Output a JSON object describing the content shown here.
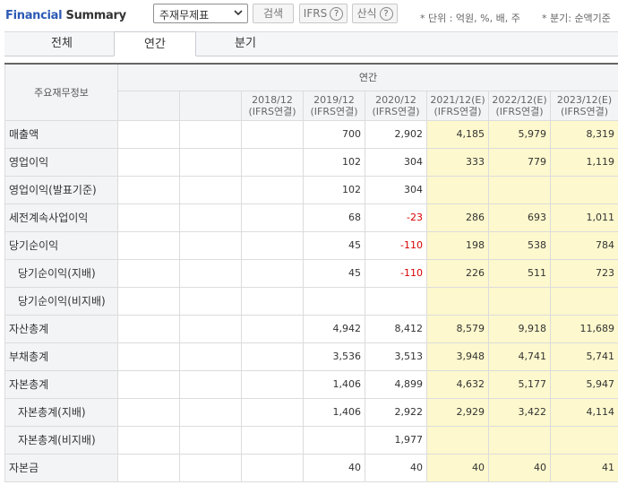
{
  "header": {
    "title_accent": "Financial",
    "title_rest": " Summary",
    "select_value": "주재무제표",
    "search_label": "검색",
    "ifrs_label": "IFRS",
    "calc_label": "산식",
    "help_glyph": "?",
    "unit_note": "* 단위 : 억원, %, 배, 주",
    "period_note": "* 분기: 순액기준"
  },
  "tabs": [
    {
      "label": "전체",
      "active": false
    },
    {
      "label": "연간",
      "active": true
    },
    {
      "label": "분기",
      "active": false
    }
  ],
  "table": {
    "corner_label": "주요재무정보",
    "group_label": "연간",
    "columns": [
      {
        "period": "",
        "basis": ""
      },
      {
        "period": "",
        "basis": ""
      },
      {
        "period": "2018/12",
        "basis": "(IFRS연결)"
      },
      {
        "period": "2019/12",
        "basis": "(IFRS연결)"
      },
      {
        "period": "2020/12",
        "basis": "(IFRS연결)"
      },
      {
        "period": "2021/12(E)",
        "basis": "(IFRS연결)"
      },
      {
        "period": "2022/12(E)",
        "basis": "(IFRS연결)"
      },
      {
        "period": "2023/12(E)",
        "basis": "(IFRS연결)"
      }
    ],
    "rows": [
      {
        "label": "매출액",
        "sub": false,
        "values": [
          "",
          "",
          "",
          "700",
          "2,902",
          "4,185",
          "5,979",
          "8,319"
        ]
      },
      {
        "label": "영업이익",
        "sub": false,
        "values": [
          "",
          "",
          "",
          "102",
          "304",
          "333",
          "779",
          "1,119"
        ]
      },
      {
        "label": "영업이익(발표기준)",
        "sub": false,
        "values": [
          "",
          "",
          "",
          "102",
          "304",
          "",
          "",
          ""
        ]
      },
      {
        "label": "세전계속사업이익",
        "sub": false,
        "values": [
          "",
          "",
          "",
          "68",
          "-23",
          "286",
          "693",
          "1,011"
        ]
      },
      {
        "label": "당기순이익",
        "sub": false,
        "values": [
          "",
          "",
          "",
          "45",
          "-110",
          "198",
          "538",
          "784"
        ]
      },
      {
        "label": "당기순이익(지배)",
        "sub": true,
        "values": [
          "",
          "",
          "",
          "45",
          "-110",
          "226",
          "511",
          "723"
        ]
      },
      {
        "label": "당기순이익(비지배)",
        "sub": true,
        "values": [
          "",
          "",
          "",
          "",
          "",
          "",
          "",
          ""
        ]
      },
      {
        "label": "자산총계",
        "sub": false,
        "values": [
          "",
          "",
          "",
          "4,942",
          "8,412",
          "8,579",
          "9,918",
          "11,689"
        ]
      },
      {
        "label": "부채총계",
        "sub": false,
        "values": [
          "",
          "",
          "",
          "3,536",
          "3,513",
          "3,948",
          "4,741",
          "5,741"
        ]
      },
      {
        "label": "자본총계",
        "sub": false,
        "values": [
          "",
          "",
          "",
          "1,406",
          "4,899",
          "4,632",
          "5,177",
          "5,947"
        ]
      },
      {
        "label": "자본총계(지배)",
        "sub": true,
        "values": [
          "",
          "",
          "",
          "1,406",
          "2,922",
          "2,929",
          "3,422",
          "4,114"
        ]
      },
      {
        "label": "자본총계(비지배)",
        "sub": true,
        "values": [
          "",
          "",
          "",
          "",
          "1,977",
          "",
          "",
          ""
        ]
      },
      {
        "label": "자본금",
        "sub": false,
        "values": [
          "",
          "",
          "",
          "40",
          "40",
          "40",
          "40",
          "41"
        ]
      }
    ]
  },
  "colors": {
    "accent": "#2c5ab5",
    "estimate_bg": "#fdf8cd",
    "negative": "#d80000",
    "header_bg": "#f3f4f6"
  }
}
